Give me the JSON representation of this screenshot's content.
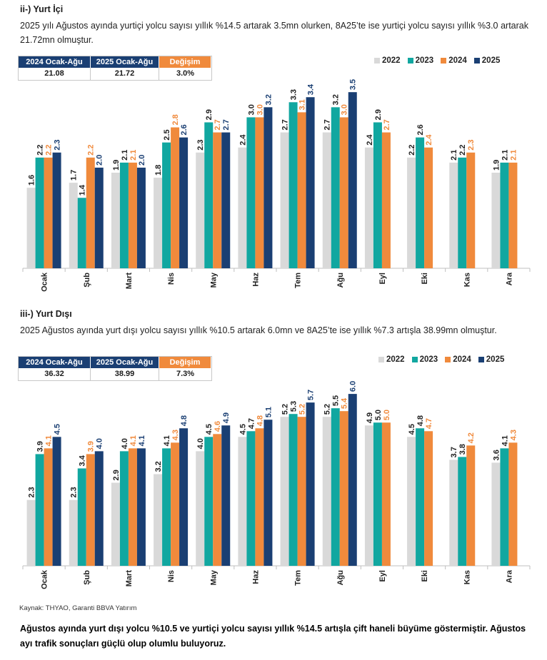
{
  "colors": {
    "2022": "#d9d9d9",
    "2023": "#11a7a0",
    "2024": "#f08a3c",
    "2025": "#1a3f73",
    "navy": "#1a3f73",
    "orange": "#f08a3c"
  },
  "domestic": {
    "title": "ii-) Yurt İçi",
    "paragraph": "2025 yılı Ağustos ayında yurtiçi yolcu sayısı yıllık %14.5 artarak 3.5mn olurken, 8A25’te ise yurtiçi yolcu sayısı yıllık %3.0 artarak 21.72mn olmuştur.",
    "summary": {
      "h1": "2024 Ocak-Ağu",
      "h2": "2025 Ocak-Ağu",
      "h3": "Değişim",
      "v1": "21.08",
      "v2": "21.72",
      "v3": "3.0%"
    }
  },
  "international": {
    "title": "iii-) Yurt Dışı",
    "paragraph": "2025 Ağustos ayında yurt dışı yolcu sayısı yıllık %10.5 artarak 6.0mn ve 8A25’te ise yıllık %7.3 artışla 38.99mn olmuştur.",
    "summary": {
      "h1": "2024 Ocak-Ağu",
      "h2": "2025 Ocak-Ağu",
      "h3": "Değişim",
      "v1": "36.32",
      "v2": "38.99",
      "v3": "7.3%"
    }
  },
  "legend": [
    "2022",
    "2023",
    "2024",
    "2025"
  ],
  "chart_data": [
    {
      "type": "bar",
      "title": "Yurt İçi",
      "categories": [
        "Ocak",
        "Şub",
        "Mart",
        "Nis",
        "May",
        "Haz",
        "Tem",
        "Ağu",
        "Eyl",
        "Eki",
        "Kas",
        "Ara"
      ],
      "ylim": [
        0,
        3.8
      ],
      "series": [
        {
          "name": "2022",
          "values": [
            1.6,
            1.7,
            1.9,
            1.8,
            2.3,
            2.4,
            2.7,
            2.7,
            2.4,
            2.2,
            2.1,
            1.9
          ]
        },
        {
          "name": "2023",
          "values": [
            2.2,
            1.4,
            2.1,
            2.5,
            2.9,
            3.0,
            3.3,
            3.2,
            2.9,
            2.6,
            2.2,
            2.1
          ]
        },
        {
          "name": "2024",
          "values": [
            2.2,
            2.2,
            2.1,
            2.8,
            2.7,
            3.0,
            3.1,
            3.0,
            2.7,
            2.4,
            2.3,
            2.1
          ]
        },
        {
          "name": "2025",
          "values": [
            2.3,
            2.0,
            2.0,
            2.6,
            2.7,
            3.2,
            3.4,
            3.5,
            null,
            null,
            null,
            null
          ]
        }
      ]
    },
    {
      "type": "bar",
      "title": "Yurt Dışı",
      "categories": [
        "Ocak",
        "Şub",
        "Mart",
        "Nis",
        "May",
        "Haz",
        "Tem",
        "Ağu",
        "Eyl",
        "Eki",
        "Kas",
        "Ara"
      ],
      "ylim": [
        0,
        6.6
      ],
      "series": [
        {
          "name": "2022",
          "values": [
            2.3,
            2.3,
            2.9,
            3.2,
            4.0,
            4.5,
            5.2,
            5.2,
            4.9,
            4.5,
            3.7,
            3.6
          ]
        },
        {
          "name": "2023",
          "values": [
            3.9,
            3.4,
            4.0,
            4.1,
            4.5,
            4.7,
            5.3,
            5.5,
            5.0,
            4.8,
            3.8,
            4.1
          ]
        },
        {
          "name": "2024",
          "values": [
            4.1,
            3.9,
            4.1,
            4.3,
            4.6,
            4.8,
            5.2,
            5.4,
            5.0,
            4.7,
            4.2,
            4.3
          ]
        },
        {
          "name": "2025",
          "values": [
            4.5,
            4.0,
            4.1,
            4.8,
            4.9,
            5.1,
            5.7,
            6.0,
            null,
            null,
            null,
            null
          ]
        }
      ]
    }
  ],
  "source": "Kaynak: THYAO, Garanti BBVA Yatırım",
  "footer": "Ağustos ayında yurt dışı yolcu %10.5 ve yurtiçi yolcu sayısı yıllık %14.5 artışla çift haneli büyüme göstermiştir. Ağustos ayı trafik sonuçları güçlü olup olumlu buluyoruz."
}
